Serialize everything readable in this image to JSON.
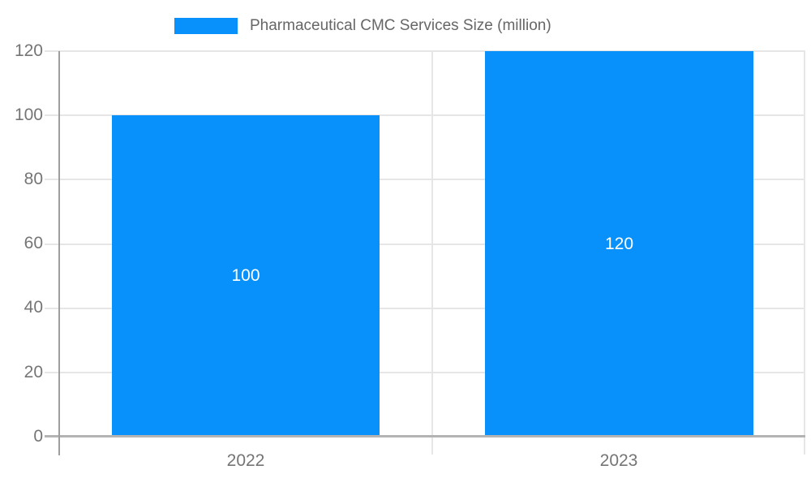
{
  "chart_data": {
    "type": "bar",
    "title": "Pharmaceutical CMC Services Size (million)",
    "categories": [
      "2022",
      "2023"
    ],
    "values": [
      100,
      120
    ],
    "series": [
      {
        "name": "Pharmaceutical CMC Services Size (million)",
        "values": [
          100,
          120
        ]
      }
    ],
    "value_labels": [
      "100",
      "120"
    ],
    "xlabel": "",
    "ylabel": "",
    "ylim": [
      0,
      120
    ],
    "yticks": [
      0,
      20,
      40,
      60,
      80,
      100,
      120
    ],
    "grid": true,
    "legend_position": "top",
    "bar_color": "#0991fb",
    "value_label_color": "#ffffff",
    "tick_label_color": "#757575",
    "gridline_color": "#e6e6e6",
    "baseline_color": "#b3b3b3",
    "axis_line_color": "#9e9e9e"
  },
  "legend": {
    "label": "Pharmaceutical CMC Services Size (million)",
    "swatch_color": "#0991fb"
  },
  "y_axis": {
    "ticks": [
      "120",
      "100",
      "80",
      "60",
      "40",
      "20",
      "0"
    ]
  },
  "x_axis": {
    "labels": [
      "2022",
      "2023"
    ]
  },
  "bars": [
    {
      "category": "2022",
      "value": "100"
    },
    {
      "category": "2023",
      "value": "120"
    }
  ]
}
